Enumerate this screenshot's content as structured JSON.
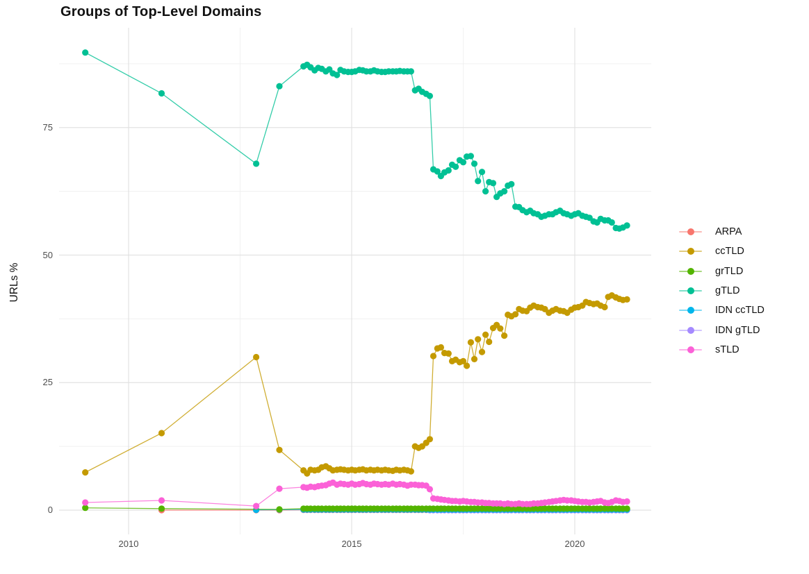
{
  "title": "Groups of Top-Level Domains",
  "axes": {
    "y_title": "URLs %",
    "x_tick_labels": [
      "2010",
      "2015",
      "2020"
    ],
    "y_tick_labels": [
      "0",
      "25",
      "50",
      "75"
    ]
  },
  "chart_data": {
    "type": "line",
    "title": "Groups of Top-Level Domains",
    "xlabel": "",
    "ylabel": "URLs %",
    "xlim": [
      2008.4,
      2021.8
    ],
    "ylim": [
      -4.5,
      94.5
    ],
    "grid": true,
    "legend_position": "right",
    "x_major_ticks": [
      2010,
      2015,
      2020
    ],
    "x_minor_gridlines": [
      2012.5,
      2017.5
    ],
    "y_major_ticks": [
      0,
      25,
      50,
      75
    ],
    "y_minor_gridlines": [
      12.5,
      37.5,
      62.5,
      87.5
    ],
    "dense_x": [
      2013.92,
      2014.0,
      2014.08,
      2014.17,
      2014.25,
      2014.33,
      2014.42,
      2014.5,
      2014.58,
      2014.67,
      2014.75,
      2014.83,
      2014.92,
      2015.0,
      2015.08,
      2015.17,
      2015.25,
      2015.33,
      2015.42,
      2015.5,
      2015.58,
      2015.67,
      2015.75,
      2015.83,
      2015.92,
      2016.0,
      2016.08,
      2016.17,
      2016.25,
      2016.33,
      2016.42,
      2016.5,
      2016.58,
      2016.67,
      2016.75,
      2016.83,
      2016.92,
      2017.0,
      2017.08,
      2017.17,
      2017.25,
      2017.33,
      2017.42,
      2017.5,
      2017.58,
      2017.67,
      2017.75,
      2017.83,
      2017.92,
      2018.0,
      2018.08,
      2018.17,
      2018.25,
      2018.33,
      2018.42,
      2018.5,
      2018.58,
      2018.67,
      2018.75,
      2018.83,
      2018.92,
      2019.0,
      2019.08,
      2019.17,
      2019.25,
      2019.33,
      2019.42,
      2019.5,
      2019.58,
      2019.67,
      2019.75,
      2019.83,
      2019.92,
      2020.0,
      2020.08,
      2020.17,
      2020.25,
      2020.33,
      2020.42,
      2020.5,
      2020.58,
      2020.67,
      2020.75,
      2020.83,
      2020.92,
      2021.0,
      2021.08,
      2021.17
    ],
    "series": [
      {
        "name": "ARPA",
        "color": "#F8766D",
        "z": 0,
        "sparse": [
          [
            2010.74,
            0.0
          ],
          [
            2012.86,
            0.0
          ],
          [
            2013.38,
            0.0
          ]
        ],
        "dense_const": 0.05
      },
      {
        "name": "ccTLD",
        "color": "#C49A00",
        "z": 5,
        "sparse": [
          [
            2009.03,
            7.4
          ],
          [
            2010.74,
            15.1
          ],
          [
            2012.86,
            30.0
          ],
          [
            2013.38,
            11.8
          ]
        ],
        "dense_y": [
          7.8,
          7.2,
          7.9,
          7.8,
          7.9,
          8.4,
          8.6,
          8.2,
          7.8,
          7.9,
          8.0,
          7.9,
          7.8,
          7.9,
          7.8,
          7.9,
          8.0,
          7.8,
          7.9,
          7.8,
          7.9,
          7.8,
          7.9,
          7.8,
          7.7,
          7.9,
          7.8,
          7.9,
          7.8,
          7.6,
          12.5,
          12.2,
          12.5,
          13.2,
          13.9,
          30.2,
          31.7,
          31.9,
          30.8,
          30.7,
          29.2,
          29.5,
          29.0,
          29.2,
          28.3,
          32.9,
          29.6,
          33.5,
          31.0,
          34.4,
          33.0,
          35.7,
          36.3,
          35.6,
          34.2,
          38.3,
          38.0,
          38.4,
          39.4,
          39.1,
          39.0,
          39.7,
          40.1,
          39.8,
          39.7,
          39.4,
          38.7,
          39.1,
          39.4,
          39.1,
          39.0,
          38.7,
          39.3,
          39.7,
          39.8,
          40.1,
          40.8,
          40.6,
          40.4,
          40.5,
          40.1,
          39.8,
          41.8,
          42.1,
          41.7,
          41.4,
          41.2,
          41.3
        ]
      },
      {
        "name": "grTLD",
        "color": "#53B400",
        "z": 3,
        "sparse": [
          [
            2009.03,
            0.45
          ],
          [
            2010.74,
            0.3
          ],
          [
            2013.38,
            0.15
          ]
        ],
        "dense_const": 0.3
      },
      {
        "name": "gTLD",
        "color": "#00C094",
        "z": 4,
        "sparse": [
          [
            2009.03,
            89.7
          ],
          [
            2010.74,
            81.7
          ],
          [
            2012.86,
            67.9
          ],
          [
            2013.38,
            83.1
          ]
        ],
        "dense_y": [
          87.0,
          87.3,
          86.8,
          86.2,
          86.7,
          86.5,
          86.0,
          86.4,
          85.6,
          85.3,
          86.3,
          86.0,
          85.9,
          85.9,
          86.0,
          86.3,
          86.2,
          86.0,
          86.0,
          86.2,
          86.0,
          85.9,
          85.9,
          86.0,
          86.0,
          86.0,
          86.1,
          86.0,
          86.0,
          86.0,
          82.3,
          82.6,
          82.0,
          81.6,
          81.2,
          66.8,
          66.4,
          65.5,
          66.2,
          66.6,
          67.7,
          67.3,
          68.6,
          68.2,
          69.3,
          69.4,
          67.9,
          64.5,
          66.3,
          62.5,
          64.3,
          64.1,
          61.4,
          62.1,
          62.5,
          63.6,
          63.9,
          59.5,
          59.4,
          58.8,
          58.4,
          58.7,
          58.2,
          58.0,
          57.5,
          57.7,
          58.0,
          58.0,
          58.4,
          58.7,
          58.2,
          58.0,
          57.7,
          58.0,
          58.2,
          57.7,
          57.5,
          57.3,
          56.6,
          56.4,
          57.1,
          56.8,
          56.8,
          56.4,
          55.3,
          55.2,
          55.4,
          55.8
        ]
      },
      {
        "name": "IDN ccTLD",
        "color": "#00B6EB",
        "z": 2,
        "sparse": [
          [
            2012.86,
            0.05
          ],
          [
            2013.38,
            0.1
          ]
        ],
        "dense_const": 0.12
      },
      {
        "name": "IDN gTLD",
        "color": "#A58AFF",
        "z": 1,
        "sparse": [],
        "dense_const": 0.0,
        "dense_from": 34
      },
      {
        "name": "sTLD",
        "color": "#FB61D7",
        "z": 6,
        "sparse": [
          [
            2009.03,
            1.5
          ],
          [
            2010.74,
            1.9
          ],
          [
            2012.86,
            0.8
          ],
          [
            2013.38,
            4.2
          ]
        ],
        "dense_y": [
          4.5,
          4.4,
          4.6,
          4.5,
          4.7,
          4.8,
          4.9,
          5.2,
          5.4,
          5.0,
          5.2,
          5.1,
          5.0,
          5.2,
          5.0,
          5.1,
          5.3,
          5.1,
          5.0,
          5.2,
          5.1,
          5.0,
          5.1,
          5.0,
          5.2,
          5.0,
          5.1,
          5.0,
          4.8,
          5.0,
          5.0,
          4.9,
          4.9,
          4.8,
          4.1,
          2.3,
          2.2,
          2.1,
          2.0,
          1.9,
          1.8,
          1.8,
          1.7,
          1.8,
          1.7,
          1.6,
          1.6,
          1.5,
          1.5,
          1.4,
          1.4,
          1.3,
          1.3,
          1.3,
          1.2,
          1.3,
          1.2,
          1.2,
          1.3,
          1.2,
          1.2,
          1.2,
          1.3,
          1.3,
          1.4,
          1.5,
          1.6,
          1.7,
          1.8,
          1.9,
          2.0,
          1.9,
          1.9,
          1.8,
          1.7,
          1.6,
          1.6,
          1.5,
          1.6,
          1.7,
          1.8,
          1.5,
          1.4,
          1.6,
          1.9,
          1.8,
          1.6,
          1.7
        ]
      }
    ]
  }
}
